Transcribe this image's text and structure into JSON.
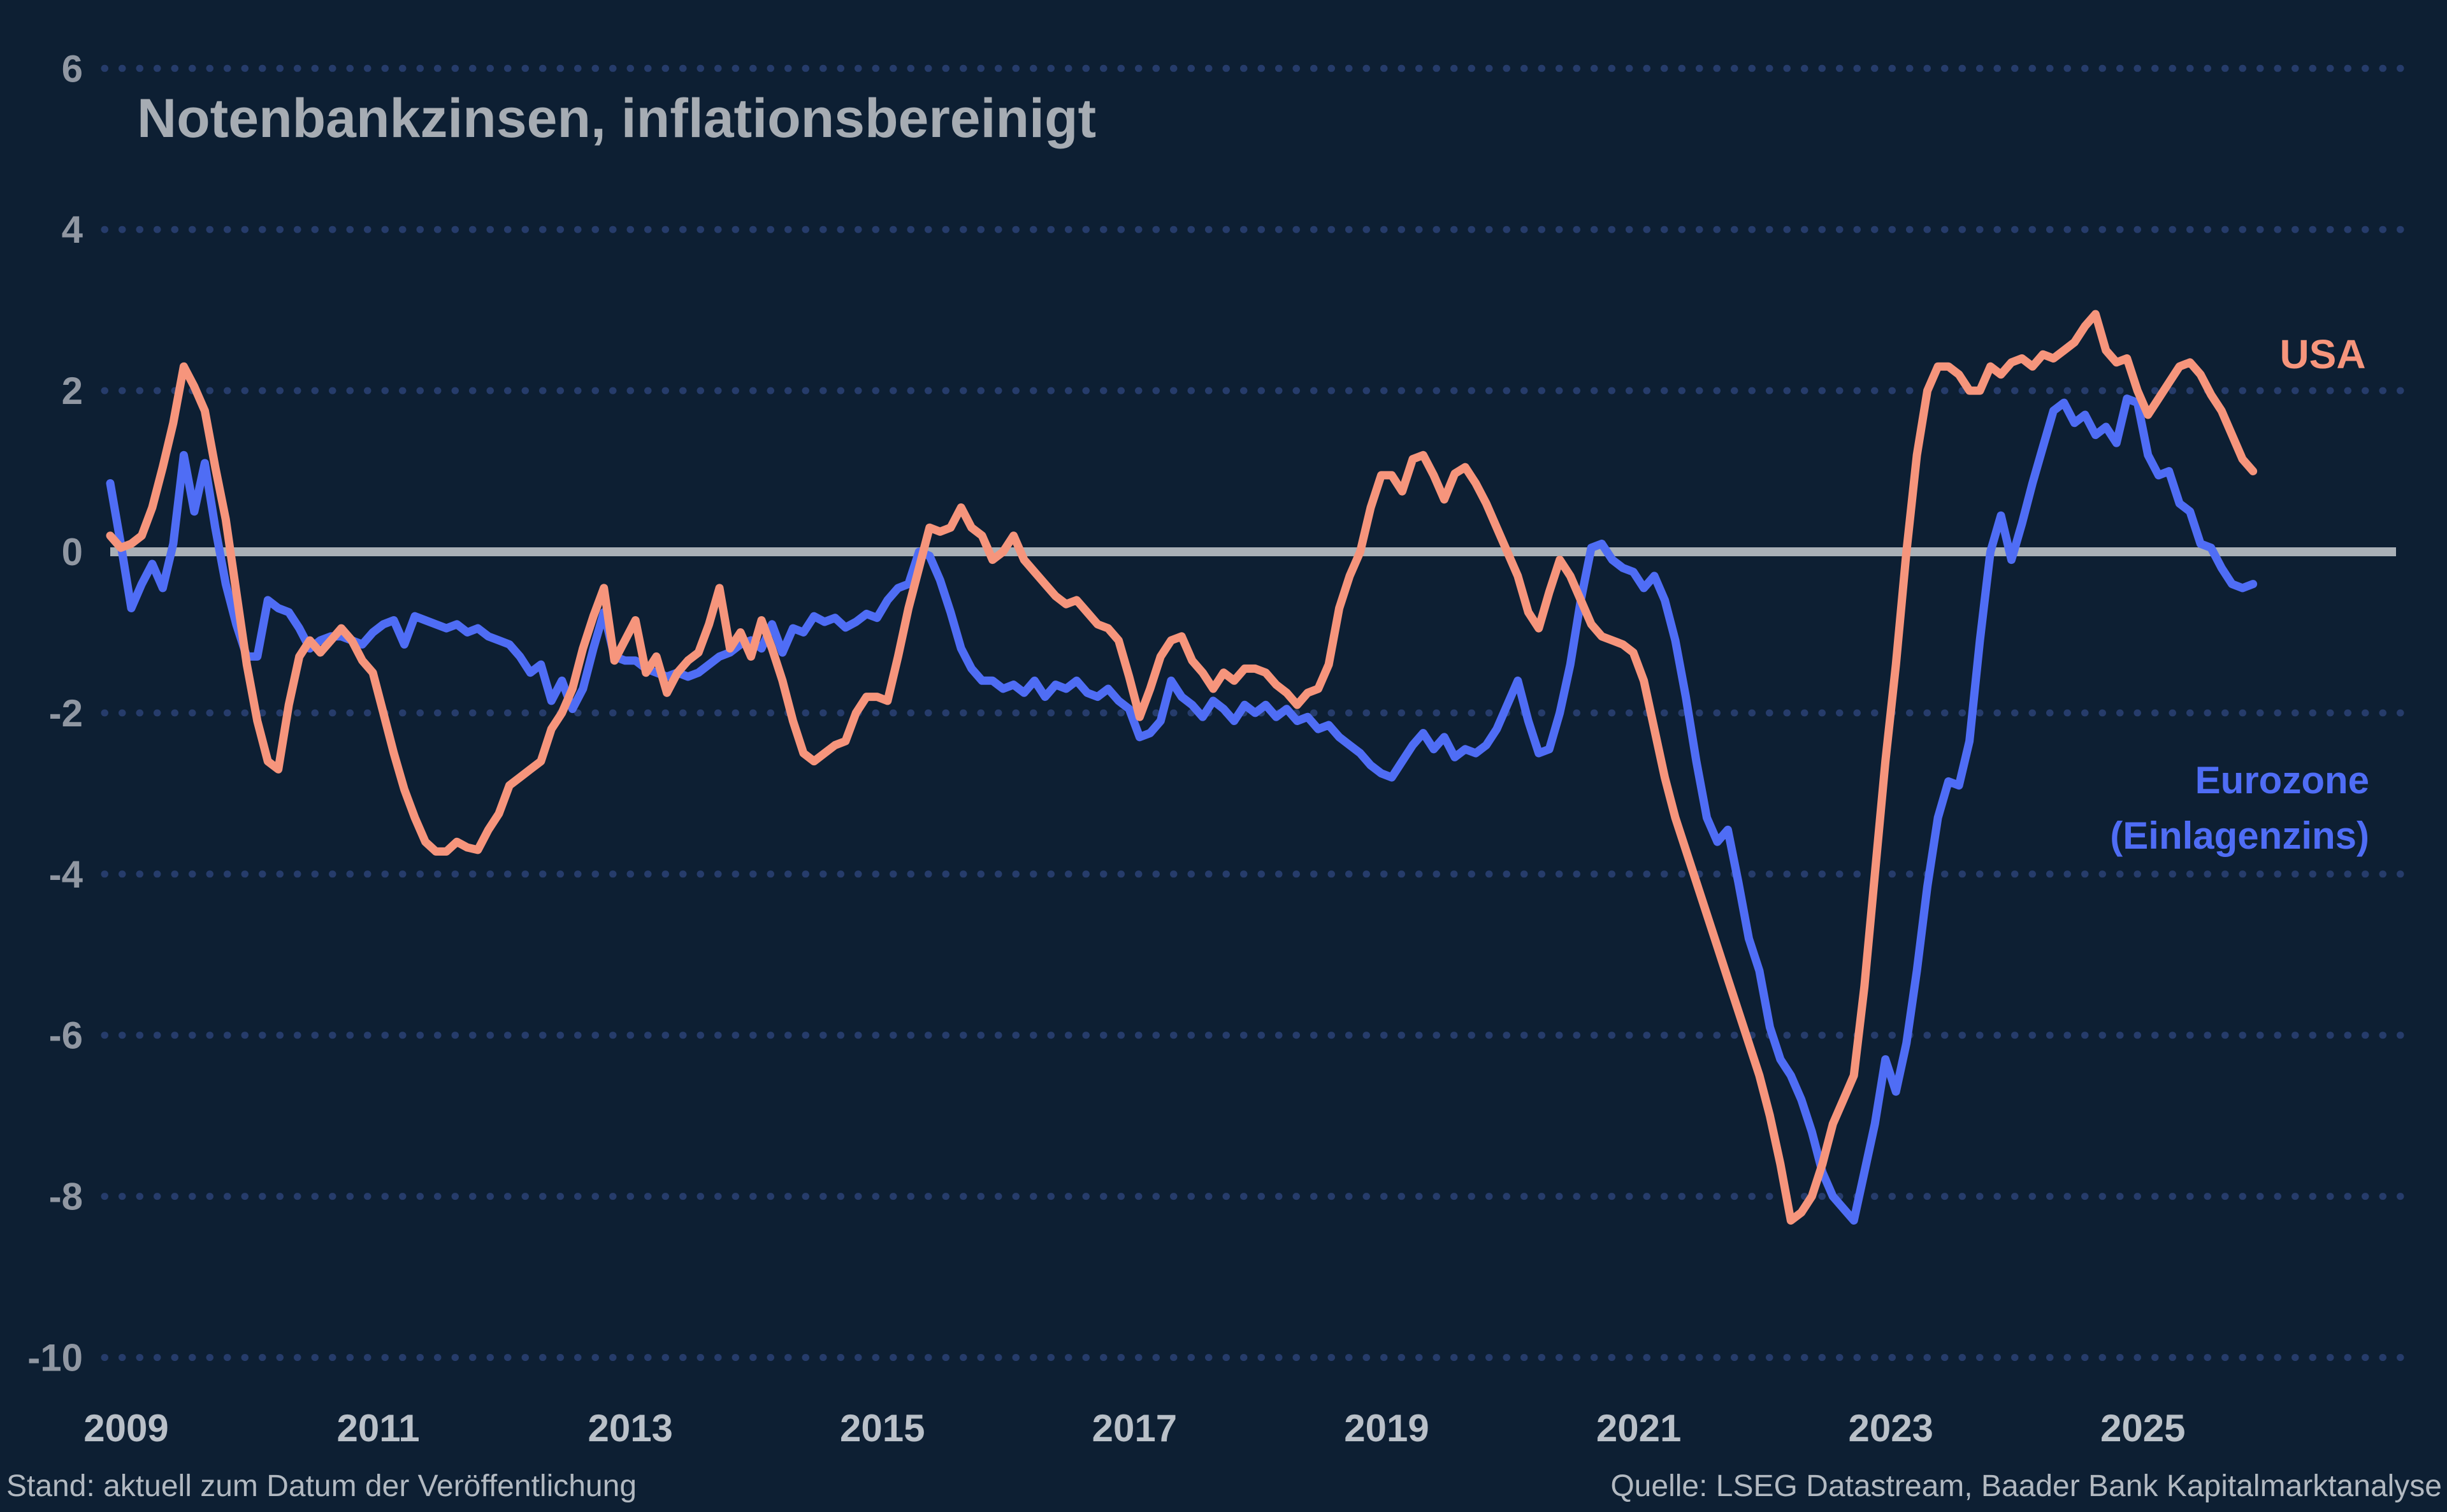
{
  "title": "Notenbankzinsen, inflationsbereinigt",
  "footer": {
    "stand": "Stand: aktuell zum Datum der Veröffentlichung",
    "source": "Quelle: LSEG Datastream, Baader Bank Kapitalmarktanalyse"
  },
  "legend": {
    "usa": "USA",
    "eurozone_line1": "Eurozone",
    "eurozone_line2": "(Einlagenzins)"
  },
  "colors": {
    "background": "#0d1f33",
    "usa_line": "#f6957c",
    "eurozone_line": "#4f6df5",
    "grid_dots": "#263c6b",
    "zero_line": "#a9b0b7",
    "title_text": "#a6acb3",
    "y_label_text": "#9097a2",
    "x_label_text": "#b9c0c8",
    "caption_text": "#b2b9c1"
  },
  "chart_data": {
    "type": "line",
    "title": "Notenbankzinsen, inflationsbereinigt",
    "xlabel": "",
    "ylabel": "",
    "grid": "horizontal dotted lines at every y tick, solid grey line at 0",
    "legend_position": "labels next to line ends (USA upper right, Eurozone right)",
    "frequency": "monthly",
    "x_start_year": 2008,
    "x_start_month": 11,
    "x_end_year": 2025,
    "x_end_month": 11,
    "x_ticks": [
      2009,
      2011,
      2013,
      2015,
      2017,
      2019,
      2021,
      2023,
      2025
    ],
    "y_ticks": [
      6,
      4,
      2,
      0,
      -2,
      -4,
      -6,
      -8,
      -10
    ],
    "ylim": [
      -10,
      6
    ],
    "series": [
      {
        "name": "Eurozone (Einlagenzins)",
        "color": "#4f6df5",
        "values": [
          0.85,
          0.1,
          -0.7,
          -0.4,
          -0.15,
          -0.45,
          0.1,
          1.2,
          0.5,
          1.1,
          0.3,
          -0.4,
          -0.9,
          -1.3,
          -1.3,
          -0.6,
          -0.7,
          -0.75,
          -0.95,
          -1.2,
          -1.1,
          -1.05,
          -1.05,
          -1.1,
          -1.15,
          -1.0,
          -0.9,
          -0.85,
          -1.15,
          -0.8,
          -0.85,
          -0.9,
          -0.95,
          -0.9,
          -1.0,
          -0.95,
          -1.05,
          -1.1,
          -1.15,
          -1.3,
          -1.5,
          -1.4,
          -1.85,
          -1.6,
          -1.95,
          -1.7,
          -1.2,
          -0.75,
          -1.3,
          -1.35,
          -1.35,
          -1.45,
          -1.5,
          -1.55,
          -1.5,
          -1.55,
          -1.5,
          -1.4,
          -1.3,
          -1.25,
          -1.15,
          -1.1,
          -1.2,
          -0.9,
          -1.25,
          -0.95,
          -1.0,
          -0.8,
          -0.87,
          -0.82,
          -0.94,
          -0.87,
          -0.77,
          -0.82,
          -0.6,
          -0.45,
          -0.4,
          0.0,
          -0.05,
          -0.35,
          -0.75,
          -1.2,
          -1.45,
          -1.6,
          -1.6,
          -1.7,
          -1.65,
          -1.75,
          -1.6,
          -1.8,
          -1.65,
          -1.7,
          -1.6,
          -1.75,
          -1.8,
          -1.7,
          -1.85,
          -1.95,
          -2.3,
          -2.25,
          -2.1,
          -1.6,
          -1.8,
          -1.9,
          -2.05,
          -1.85,
          -1.95,
          -2.1,
          -1.9,
          -2.0,
          -1.9,
          -2.05,
          -1.95,
          -2.1,
          -2.05,
          -2.2,
          -2.15,
          -2.3,
          -2.4,
          -2.5,
          -2.65,
          -2.75,
          -2.8,
          -2.6,
          -2.4,
          -2.25,
          -2.45,
          -2.3,
          -2.55,
          -2.45,
          -2.5,
          -2.4,
          -2.2,
          -1.9,
          -1.6,
          -2.1,
          -2.5,
          -2.45,
          -2.0,
          -1.4,
          -0.6,
          0.05,
          0.1,
          -0.1,
          -0.2,
          -0.25,
          -0.45,
          -0.3,
          -0.6,
          -1.1,
          -1.8,
          -2.6,
          -3.3,
          -3.6,
          -3.45,
          -4.1,
          -4.8,
          -5.2,
          -5.9,
          -6.3,
          -6.5,
          -6.8,
          -7.2,
          -7.7,
          -8.0,
          -8.15,
          -8.3,
          -7.7,
          -7.1,
          -6.3,
          -6.7,
          -6.1,
          -5.2,
          -4.15,
          -3.3,
          -2.85,
          -2.9,
          -2.35,
          -1.1,
          0.0,
          0.45,
          -0.1,
          0.35,
          0.85,
          1.3,
          1.75,
          1.85,
          1.6,
          1.7,
          1.45,
          1.55,
          1.35,
          1.9,
          1.85,
          1.2,
          0.95,
          1.0,
          0.6,
          0.5,
          0.1,
          0.05,
          -0.2,
          -0.4,
          -0.45,
          -0.4
        ]
      },
      {
        "name": "USA",
        "color": "#f6957c",
        "values": [
          0.2,
          0.05,
          0.1,
          0.2,
          0.55,
          1.05,
          1.6,
          2.3,
          2.05,
          1.75,
          1.05,
          0.4,
          -0.5,
          -1.4,
          -2.1,
          -2.6,
          -2.7,
          -1.9,
          -1.3,
          -1.1,
          -1.25,
          -1.1,
          -0.95,
          -1.1,
          -1.35,
          -1.5,
          -2.0,
          -2.5,
          -2.95,
          -3.3,
          -3.6,
          -3.72,
          -3.72,
          -3.6,
          -3.67,
          -3.7,
          -3.45,
          -3.25,
          -2.9,
          -2.8,
          -2.7,
          -2.6,
          -2.2,
          -2.0,
          -1.7,
          -1.2,
          -0.8,
          -0.45,
          -1.35,
          -1.1,
          -0.85,
          -1.5,
          -1.3,
          -1.75,
          -1.5,
          -1.35,
          -1.25,
          -0.9,
          -0.45,
          -1.2,
          -1.0,
          -1.3,
          -0.85,
          -1.2,
          -1.6,
          -2.1,
          -2.5,
          -2.6,
          -2.5,
          -2.4,
          -2.35,
          -2.0,
          -1.8,
          -1.8,
          -1.85,
          -1.3,
          -0.7,
          -0.2,
          0.3,
          0.25,
          0.3,
          0.55,
          0.3,
          0.2,
          -0.1,
          0.0,
          0.2,
          -0.1,
          -0.25,
          -0.4,
          -0.55,
          -0.65,
          -0.6,
          -0.75,
          -0.9,
          -0.95,
          -1.1,
          -1.55,
          -2.05,
          -1.7,
          -1.3,
          -1.1,
          -1.05,
          -1.35,
          -1.5,
          -1.7,
          -1.5,
          -1.6,
          -1.45,
          -1.45,
          -1.5,
          -1.65,
          -1.75,
          -1.9,
          -1.75,
          -1.7,
          -1.4,
          -0.7,
          -0.3,
          0.0,
          0.55,
          0.95,
          0.95,
          0.75,
          1.15,
          1.2,
          0.95,
          0.65,
          0.97,
          1.05,
          0.85,
          0.6,
          0.3,
          0.0,
          -0.3,
          -0.75,
          -0.95,
          -0.5,
          -0.1,
          -0.3,
          -0.6,
          -0.9,
          -1.05,
          -1.1,
          -1.15,
          -1.25,
          -1.6,
          -2.2,
          -2.8,
          -3.3,
          -3.7,
          -4.1,
          -4.5,
          -4.9,
          -5.3,
          -5.7,
          -6.1,
          -6.5,
          -7.0,
          -7.6,
          -8.3,
          -8.2,
          -8.0,
          -7.6,
          -7.1,
          -6.8,
          -6.5,
          -5.4,
          -4.0,
          -2.6,
          -1.4,
          0.0,
          1.2,
          2.0,
          2.3,
          2.3,
          2.2,
          2.0,
          2.0,
          2.3,
          2.2,
          2.35,
          2.4,
          2.3,
          2.45,
          2.4,
          2.5,
          2.6,
          2.8,
          2.95,
          2.5,
          2.35,
          2.4,
          2.0,
          1.7,
          1.9,
          2.1,
          2.3,
          2.35,
          2.2,
          1.95,
          1.75,
          1.45,
          1.15,
          1.0
        ]
      }
    ]
  }
}
